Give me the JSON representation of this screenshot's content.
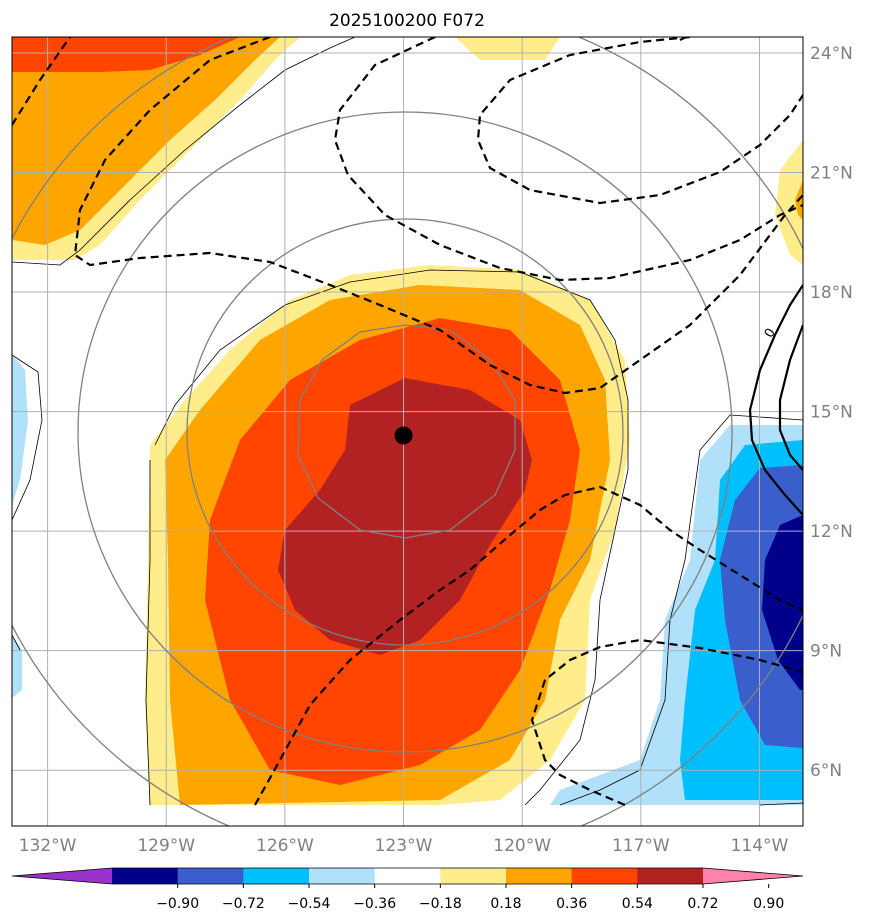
{
  "title": "2025100200 F072",
  "x_ticks": [
    {
      "label": "132°W",
      "lon": -132
    },
    {
      "label": "129°W",
      "lon": -129
    },
    {
      "label": "126°W",
      "lon": -126
    },
    {
      "label": "123°W",
      "lon": -123
    },
    {
      "label": "120°W",
      "lon": -120
    },
    {
      "label": "117°W",
      "lon": -117
    },
    {
      "label": "114°W",
      "lon": -114
    }
  ],
  "y_ticks": [
    {
      "label": "24°N",
      "lat": 24
    },
    {
      "label": "21°N",
      "lat": 21
    },
    {
      "label": "18°N",
      "lat": 18
    },
    {
      "label": "15°N",
      "lat": 15
    },
    {
      "label": "12°N",
      "lat": 12
    },
    {
      "label": "9°N",
      "lat": 9
    },
    {
      "label": "6°N",
      "lat": 6
    }
  ],
  "extent": {
    "lon_min": -132.9,
    "lon_max": -112.9,
    "lat_min": 4.6,
    "lat_max": 24.4
  },
  "colorbar": {
    "levels": [
      "−0.90",
      "−0.72",
      "−0.54",
      "−0.36",
      "−0.18",
      "0.18",
      "0.36",
      "0.54",
      "0.72",
      "0.90"
    ],
    "colors": [
      "#9932cc",
      "#00008b",
      "#3a5fcd",
      "#00bfff",
      "#b0e0fa",
      "#ffffff",
      "#ffec8b",
      "#ffa500",
      "#ff4500",
      "#b22222",
      "#ff82ab"
    ]
  },
  "contour_label": "0",
  "storm_center": {
    "lon": -123,
    "lat": 14.4
  }
}
